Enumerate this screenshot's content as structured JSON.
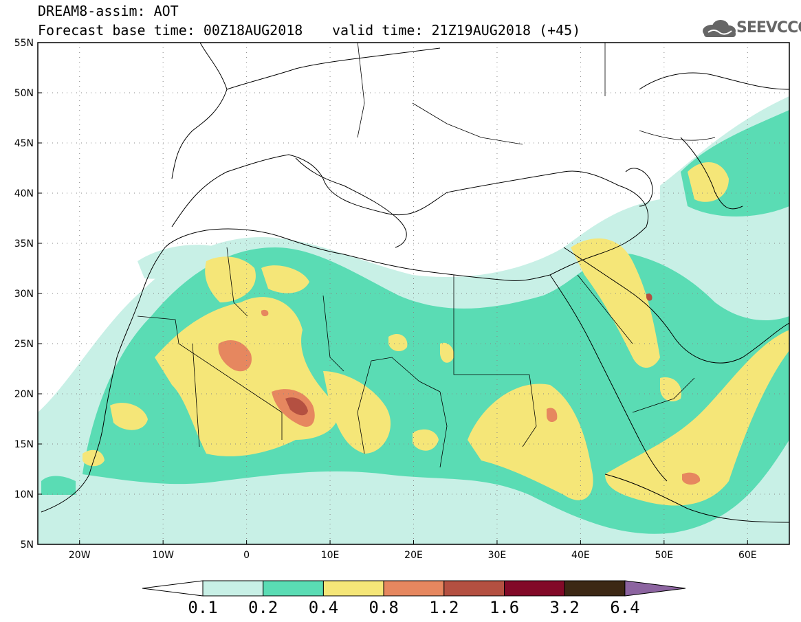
{
  "header": {
    "title": "DREAM8-assim: AOT",
    "base_time": "Forecast base time: 00Z18AUG2018",
    "valid_time": "valid time: 21Z19AUG2018 (+45)",
    "logo_text": "SEEVCCC",
    "logo_icon": "cloud-icon"
  },
  "map": {
    "lat_labels": [
      "55N",
      "50N",
      "45N",
      "40N",
      "35N",
      "30N",
      "25N",
      "20N",
      "15N",
      "10N",
      "5N"
    ],
    "lon_labels": [
      "20W",
      "10W",
      "0",
      "10E",
      "20E",
      "30E",
      "40E",
      "50E",
      "60E"
    ],
    "lat_range": [
      5,
      55
    ],
    "lon_range": [
      -25,
      65
    ],
    "grid": true
  },
  "colorbar": {
    "labels": [
      "0.1",
      "0.2",
      "0.4",
      "0.8",
      "1.2",
      "1.6",
      "3.2",
      "6.4"
    ],
    "colors": [
      "#c8f0e6",
      "#5adcb4",
      "#f5e678",
      "#e6875f",
      "#b45041",
      "#820a28",
      "#3c2814",
      "#8c64a0"
    ],
    "below_color": "#ffffff"
  },
  "colors": {
    "level_0_1": "#c8f0e6",
    "level_0_2": "#5adcb4",
    "level_0_4": "#f5e678",
    "level_0_8": "#e6875f",
    "level_1_2": "#b45041",
    "level_1_6": "#820a28"
  }
}
